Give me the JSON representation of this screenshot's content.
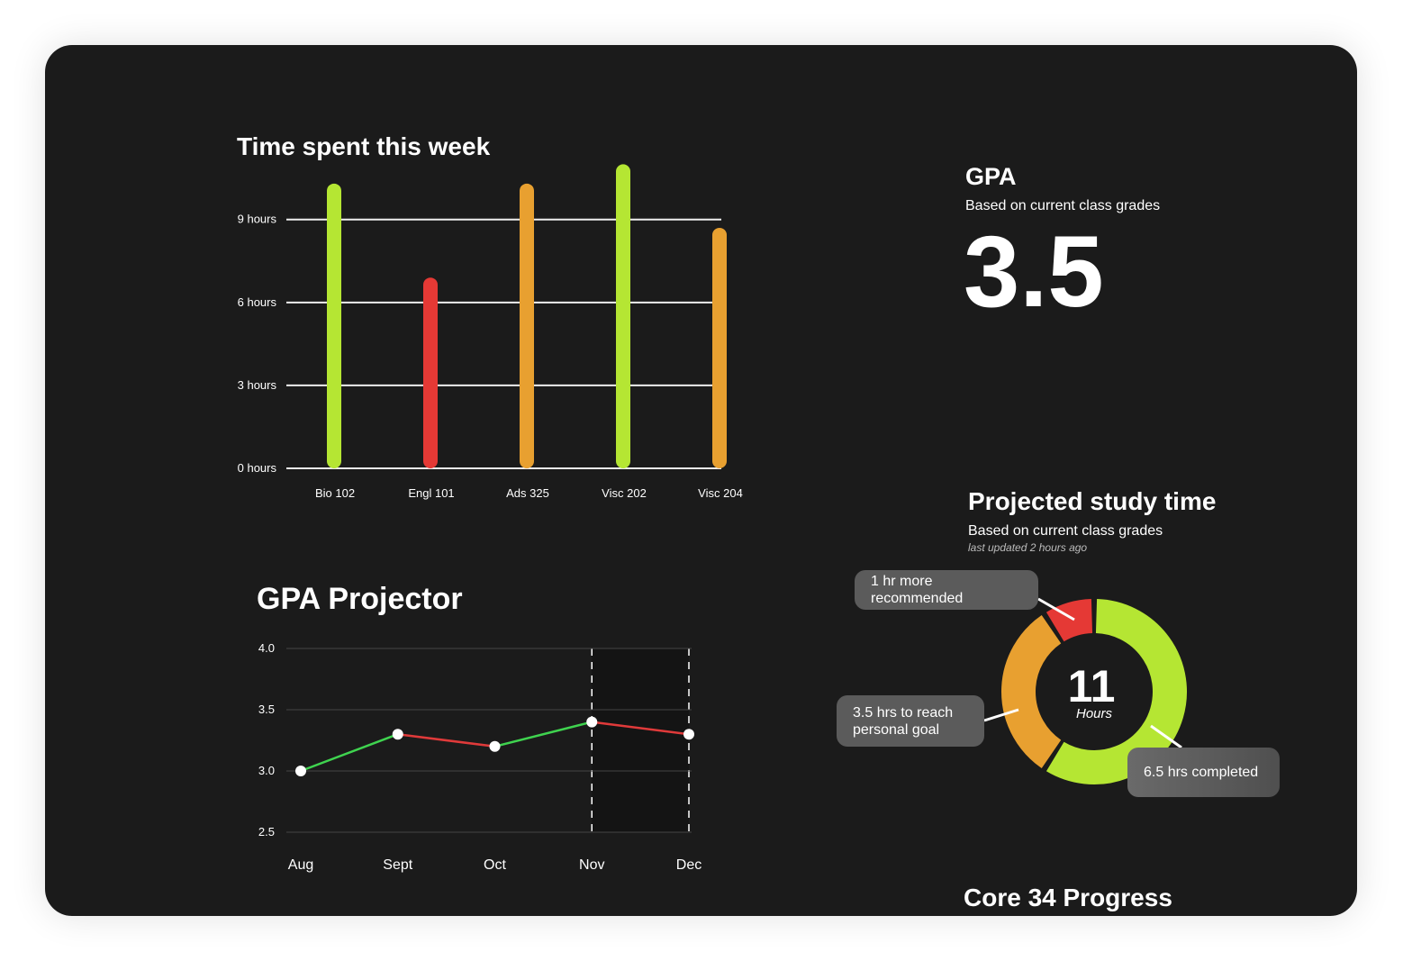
{
  "chart_data": [
    {
      "type": "bar",
      "title": "Time spent this week",
      "categories": [
        "Bio 102",
        "Engl 101",
        "Ads 325",
        "Visc 202",
        "Visc 204"
      ],
      "values": [
        10.3,
        6.9,
        10.3,
        11.0,
        8.7
      ],
      "colors": [
        "#b5e633",
        "#e53935",
        "#e8a030",
        "#b5e633",
        "#e8a030"
      ],
      "ylim": [
        0,
        11.5
      ],
      "yticks": [
        {
          "value": 0,
          "label": "0 hours"
        },
        {
          "value": 3,
          "label": "3 hours"
        },
        {
          "value": 6,
          "label": "6 hours"
        },
        {
          "value": 9,
          "label": "9 hours"
        }
      ],
      "grid": true
    },
    {
      "type": "line",
      "title": "GPA Projector",
      "categories": [
        "Aug",
        "Sept",
        "Oct",
        "Nov",
        "Dec"
      ],
      "values": [
        3.0,
        3.3,
        3.2,
        3.4,
        3.3
      ],
      "up_color": "#3fd34f",
      "down_color": "#e03a3a",
      "shaded_from": "Nov",
      "ylim": [
        2.5,
        4.0
      ],
      "yticks": [
        2.5,
        {
          "value": 3,
          "label": "3.0"
        },
        3.5,
        {
          "value": 4,
          "label": "4.0"
        }
      ],
      "grid": true
    },
    {
      "type": "donut",
      "title": "Projected study time",
      "subtitle": "Based on current class grades",
      "note": "last updated 2 hours ago",
      "total": 11,
      "total_label": "Hours",
      "categories": [
        "6.5 hrs completed",
        "3.5 hrs to reach personal goal",
        "1 hr more recommended"
      ],
      "values": [
        6.5,
        3.5,
        1
      ],
      "colors": [
        "#b5e633",
        "#e8a030",
        "#e53935"
      ]
    }
  ],
  "gpa": {
    "title": "GPA",
    "subtitle": "Based on current class grades",
    "value": 3.5
  },
  "footer_title": "Core 34 Progress"
}
